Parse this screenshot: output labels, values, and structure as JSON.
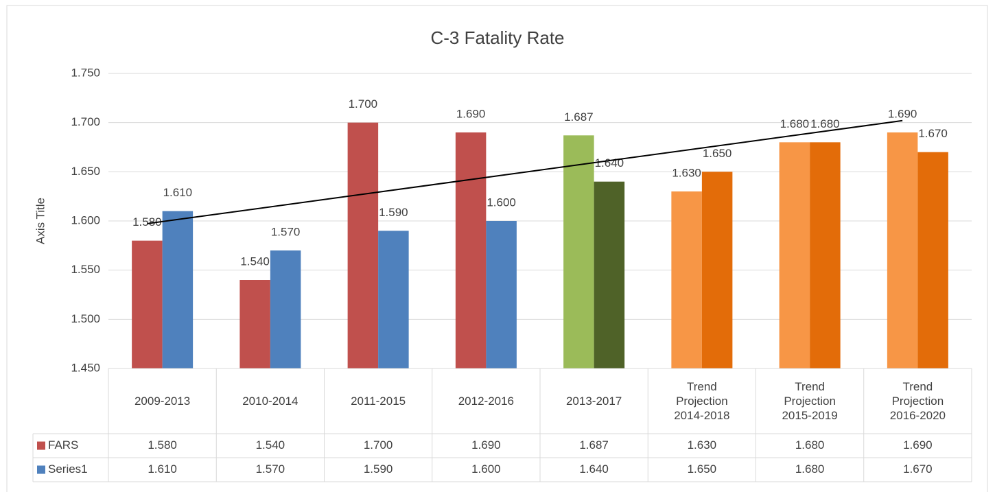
{
  "chart_data": {
    "type": "bar",
    "title": "C-3 Fatality Rate",
    "y_label": "Axis Title",
    "categories": [
      "2009-2013",
      "2010-2014",
      "2011-2015",
      "2012-2016",
      "2013-2017",
      "Trend Projection 2014-2018",
      "Trend Projection 2015-2019",
      "Trend Projection 2016-2020"
    ],
    "series": [
      {
        "name": "FARS",
        "color": "#c0504d",
        "colors": [
          "#c0504d",
          "#c0504d",
          "#c0504d",
          "#c0504d",
          "#9bbb59",
          "#f79646",
          "#f79646",
          "#f79646"
        ],
        "values": [
          1.58,
          1.54,
          1.7,
          1.69,
          1.687,
          1.63,
          1.68,
          1.69
        ],
        "value_labels": [
          "1.580",
          "1.540",
          "1.700",
          "1.690",
          "1.687",
          "1.630",
          "1.680",
          "1.690"
        ]
      },
      {
        "name": "Series1",
        "color": "#4f81bd",
        "colors": [
          "#4f81bd",
          "#4f81bd",
          "#4f81bd",
          "#4f81bd",
          "#4f6228",
          "#e36c09",
          "#e36c09",
          "#e36c09"
        ],
        "values": [
          1.61,
          1.57,
          1.59,
          1.6,
          1.64,
          1.65,
          1.68,
          1.67
        ],
        "value_labels": [
          "1.610",
          "1.570",
          "1.590",
          "1.600",
          "1.640",
          "1.650",
          "1.680",
          "1.670"
        ]
      }
    ],
    "ylim": [
      1.45,
      1.75
    ],
    "yticks": [
      {
        "value": 1.45,
        "label": "1.450"
      },
      {
        "value": 1.5,
        "label": "1.500"
      },
      {
        "value": 1.55,
        "label": "1.550"
      },
      {
        "value": 1.6,
        "label": "1.600"
      },
      {
        "value": 1.65,
        "label": "1.650"
      },
      {
        "value": 1.7,
        "label": "1.700"
      },
      {
        "value": 1.75,
        "label": "1.750"
      }
    ],
    "grid": true,
    "data_table": true,
    "trendline": {
      "series": 0,
      "type": "linear",
      "color": "#000000"
    }
  }
}
